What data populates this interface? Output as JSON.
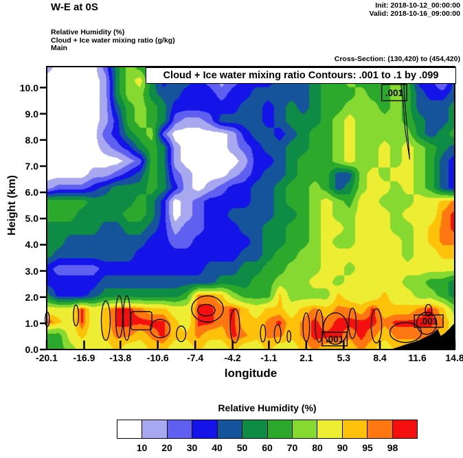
{
  "header": {
    "title": "W-E at 0S",
    "init": "Init: 2018-10-12_00:00:00",
    "valid": "Valid: 2018-10-16_09:00:00",
    "field1": "Relative Humidity   (%)",
    "field2": "Cloud + Ice water mixing ratio   (g/kg)",
    "field3": "Main",
    "cross_section": "Cross-Section: (130,420) to (454,420)"
  },
  "legend": {
    "title": "Relative Humidity  (%)",
    "labels": [
      "10",
      "20",
      "30",
      "40",
      "50",
      "60",
      "70",
      "80",
      "90",
      "95",
      "98"
    ]
  },
  "chart_data": {
    "type": "heatmap",
    "title": "Cloud + Ice water mixing ratio Contours: .001 to .1 by .099",
    "xlabel": "longitude",
    "ylabel": "Height (km)",
    "xlim": [
      -20.1,
      14.8
    ],
    "ylim": [
      0,
      10.8
    ],
    "x_ticks": [
      -20.1,
      -16.9,
      -13.8,
      -10.6,
      -7.4,
      -4.2,
      -1.1,
      2.1,
      5.3,
      8.4,
      11.6,
      14.8
    ],
    "y_ticks": [
      0.0,
      1.0,
      2.0,
      3.0,
      4.0,
      5.0,
      6.0,
      7.0,
      8.0,
      9.0,
      10.0
    ],
    "levels": [
      10,
      20,
      30,
      40,
      50,
      60,
      70,
      80,
      90,
      95,
      98
    ],
    "colors": [
      "#FFFFFF",
      "#A8A8F0",
      "#6060F0",
      "#1414E8",
      "#15549B",
      "#0E8B45",
      "#2CA92C",
      "#86D930",
      "#EDED33",
      "#FFC20A",
      "#FF7711",
      "#F51010"
    ],
    "rh_grid": {
      "nx": 36,
      "ny": 22,
      "note": "relative humidity (%) sampled on lon x height grid, rows top (10.8 km) to bottom (0 km), cols lon -20.1 to 14.8",
      "values": [
        [
          15,
          5,
          5,
          5,
          5,
          25,
          55,
          75,
          65,
          55,
          35,
          45,
          35,
          35,
          25,
          15,
          25,
          35,
          35,
          35,
          35,
          45,
          45,
          55,
          65,
          65,
          75,
          65,
          65,
          65,
          65,
          65,
          35,
          25,
          15,
          45
        ],
        [
          5,
          5,
          5,
          5,
          5,
          15,
          55,
          75,
          85,
          55,
          35,
          45,
          45,
          35,
          25,
          15,
          25,
          35,
          35,
          35,
          45,
          45,
          45,
          55,
          65,
          65,
          75,
          65,
          65,
          65,
          75,
          65,
          35,
          35,
          15,
          45
        ],
        [
          5,
          5,
          5,
          5,
          5,
          15,
          55,
          75,
          75,
          55,
          45,
          45,
          35,
          35,
          35,
          25,
          35,
          35,
          45,
          45,
          45,
          45,
          45,
          55,
          65,
          65,
          65,
          75,
          65,
          65,
          75,
          65,
          45,
          35,
          35,
          45
        ],
        [
          5,
          5,
          5,
          5,
          5,
          15,
          45,
          65,
          75,
          65,
          55,
          35,
          35,
          35,
          35,
          35,
          35,
          45,
          45,
          35,
          45,
          55,
          45,
          55,
          65,
          65,
          75,
          75,
          75,
          65,
          75,
          65,
          45,
          45,
          45,
          55
        ],
        [
          5,
          5,
          5,
          5,
          5,
          15,
          35,
          65,
          75,
          65,
          55,
          25,
          15,
          15,
          25,
          45,
          45,
          45,
          45,
          35,
          45,
          55,
          55,
          55,
          65,
          75,
          85,
          75,
          75,
          75,
          75,
          65,
          55,
          45,
          45,
          55
        ],
        [
          5,
          5,
          5,
          5,
          5,
          25,
          35,
          55,
          65,
          75,
          25,
          5,
          5,
          5,
          5,
          5,
          15,
          35,
          45,
          45,
          35,
          45,
          55,
          65,
          65,
          75,
          85,
          75,
          75,
          75,
          75,
          75,
          55,
          45,
          55,
          65
        ],
        [
          5,
          5,
          5,
          5,
          5,
          15,
          25,
          35,
          55,
          65,
          55,
          15,
          5,
          5,
          5,
          5,
          15,
          25,
          35,
          45,
          45,
          55,
          55,
          65,
          65,
          75,
          85,
          75,
          75,
          85,
          75,
          85,
          75,
          65,
          55,
          45
        ],
        [
          5,
          5,
          5,
          5,
          5,
          5,
          5,
          15,
          25,
          65,
          55,
          15,
          5,
          5,
          5,
          5,
          5,
          15,
          35,
          35,
          45,
          55,
          65,
          65,
          65,
          75,
          85,
          75,
          75,
          85,
          75,
          85,
          75,
          65,
          45,
          35
        ],
        [
          5,
          5,
          5,
          5,
          15,
          15,
          25,
          35,
          45,
          65,
          55,
          25,
          15,
          5,
          5,
          5,
          15,
          25,
          35,
          45,
          45,
          55,
          65,
          65,
          65,
          45,
          45,
          75,
          85,
          75,
          85,
          85,
          75,
          65,
          45,
          35
        ],
        [
          15,
          25,
          25,
          25,
          35,
          45,
          55,
          55,
          55,
          65,
          55,
          35,
          15,
          5,
          15,
          25,
          35,
          35,
          45,
          45,
          55,
          65,
          65,
          75,
          65,
          45,
          55,
          75,
          85,
          85,
          75,
          85,
          75,
          65,
          45,
          35
        ],
        [
          65,
          65,
          65,
          65,
          55,
          55,
          55,
          55,
          65,
          55,
          35,
          5,
          15,
          25,
          35,
          35,
          35,
          35,
          45,
          45,
          55,
          65,
          65,
          75,
          85,
          75,
          65,
          85,
          85,
          75,
          75,
          75,
          85,
          85,
          92,
          96
        ],
        [
          65,
          65,
          65,
          55,
          55,
          55,
          55,
          65,
          65,
          55,
          35,
          5,
          15,
          25,
          35,
          35,
          45,
          45,
          45,
          45,
          55,
          55,
          65,
          75,
          85,
          75,
          75,
          85,
          85,
          85,
          75,
          85,
          85,
          85,
          96,
          99
        ],
        [
          55,
          55,
          55,
          55,
          55,
          45,
          45,
          55,
          55,
          45,
          35,
          15,
          25,
          25,
          35,
          35,
          35,
          45,
          45,
          55,
          55,
          65,
          65,
          75,
          85,
          85,
          75,
          85,
          85,
          85,
          75,
          75,
          85,
          92,
          96,
          99
        ],
        [
          55,
          55,
          45,
          45,
          45,
          45,
          45,
          45,
          45,
          35,
          35,
          25,
          25,
          35,
          35,
          35,
          35,
          35,
          45,
          55,
          55,
          65,
          65,
          75,
          85,
          75,
          75,
          85,
          85,
          85,
          85,
          75,
          85,
          92,
          96,
          96
        ],
        [
          55,
          45,
          45,
          45,
          45,
          45,
          45,
          45,
          35,
          35,
          35,
          35,
          35,
          35,
          35,
          35,
          35,
          45,
          45,
          55,
          65,
          65,
          75,
          75,
          85,
          85,
          85,
          85,
          85,
          85,
          85,
          75,
          85,
          85,
          92,
          92
        ],
        [
          35,
          25,
          25,
          25,
          25,
          35,
          35,
          35,
          35,
          35,
          35,
          35,
          35,
          35,
          45,
          45,
          45,
          55,
          55,
          65,
          65,
          75,
          75,
          75,
          85,
          85,
          75,
          85,
          85,
          85,
          85,
          85,
          85,
          85,
          85,
          85
        ],
        [
          35,
          35,
          35,
          35,
          35,
          45,
          45,
          45,
          45,
          45,
          45,
          45,
          45,
          45,
          45,
          55,
          55,
          55,
          65,
          65,
          75,
          75,
          75,
          85,
          85,
          75,
          85,
          85,
          85,
          85,
          85,
          75,
          75,
          65,
          65,
          55
        ],
        [
          55,
          35,
          35,
          35,
          45,
          55,
          55,
          55,
          55,
          55,
          55,
          55,
          65,
          96,
          96,
          92,
          75,
          65,
          65,
          65,
          92,
          75,
          75,
          75,
          75,
          92,
          85,
          85,
          85,
          92,
          85,
          85,
          75,
          75,
          65,
          55
        ],
        [
          85,
          85,
          85,
          99,
          85,
          92,
          99,
          99,
          96,
          92,
          92,
          85,
          85,
          99,
          99,
          96,
          99,
          92,
          85,
          92,
          92,
          85,
          92,
          96,
          92,
          96,
          96,
          92,
          99,
          92,
          92,
          92,
          96,
          99,
          92,
          75
        ],
        [
          99,
          92,
          85,
          99,
          85,
          92,
          99,
          99,
          99,
          99,
          99,
          92,
          85,
          99,
          99,
          96,
          99,
          92,
          92,
          96,
          99,
          92,
          96,
          99,
          96,
          99,
          99,
          99,
          99,
          96,
          99,
          99,
          99,
          99,
          96,
          85
        ],
        [
          65,
          65,
          85,
          92,
          85,
          92,
          96,
          96,
          92,
          96,
          99,
          92,
          92,
          96,
          92,
          92,
          99,
          96,
          92,
          96,
          96,
          92,
          96,
          99,
          99,
          99,
          96,
          99,
          96,
          92,
          96,
          96,
          96,
          96,
          92,
          85
        ],
        [
          65,
          65,
          75,
          85,
          85,
          85,
          92,
          85,
          85,
          92,
          92,
          85,
          85,
          92,
          85,
          85,
          92,
          85,
          85,
          92,
          85,
          85,
          92,
          96,
          92,
          92,
          92,
          96,
          92,
          85,
          92,
          92,
          92,
          92,
          92,
          85
        ]
      ]
    },
    "cloud_contours": {
      "contour_values": ".001 to .1 by .099",
      "ellipses": [
        {
          "x": -20.05,
          "y": 1.15,
          "rx": 0.18,
          "ry": 0.28
        },
        {
          "x": -17.6,
          "y": 1.3,
          "rx": 0.22,
          "ry": 0.4
        },
        {
          "x": -15.05,
          "y": 1.1,
          "rx": 0.38,
          "ry": 0.75
        },
        {
          "x": -13.9,
          "y": 1.25,
          "rx": 0.3,
          "ry": 0.8
        },
        {
          "x": -13.25,
          "y": 1.2,
          "rx": 0.3,
          "ry": 0.85
        },
        {
          "x": -10.4,
          "y": 0.8,
          "rx": 0.85,
          "ry": 0.35
        },
        {
          "x": -8.6,
          "y": 0.6,
          "rx": 0.4,
          "ry": 0.3
        },
        {
          "x": -6.35,
          "y": 1.55,
          "rx": 1.35,
          "ry": 0.5
        },
        {
          "x": -6.45,
          "y": 1.5,
          "rx": 0.75,
          "ry": 0.22
        },
        {
          "x": -4.0,
          "y": 0.9,
          "rx": 0.4,
          "ry": 0.65
        },
        {
          "x": -1.6,
          "y": 0.62,
          "rx": 0.22,
          "ry": 0.33
        },
        {
          "x": -0.35,
          "y": 0.6,
          "rx": 0.28,
          "ry": 0.35
        },
        {
          "x": 0.62,
          "y": 0.5,
          "rx": 0.16,
          "ry": 0.22
        },
        {
          "x": 2.1,
          "y": 0.85,
          "rx": 0.28,
          "ry": 0.55
        },
        {
          "x": 3.2,
          "y": 0.9,
          "rx": 0.32,
          "ry": 0.62
        },
        {
          "x": 4.6,
          "y": 0.8,
          "rx": 1.05,
          "ry": 0.6
        },
        {
          "x": 6.05,
          "y": 1.0,
          "rx": 0.32,
          "ry": 0.58
        },
        {
          "x": 8.1,
          "y": 0.9,
          "rx": 0.45,
          "ry": 0.65
        },
        {
          "x": 10.6,
          "y": 0.65,
          "rx": 1.35,
          "ry": 0.38
        },
        {
          "x": 12.4,
          "y": 1.0,
          "rx": 0.85,
          "ry": 0.42
        },
        {
          "x": 12.55,
          "y": 1.5,
          "rx": 0.28,
          "ry": 0.22
        }
      ],
      "rect_contour": {
        "x1": -12.9,
        "x2": -11.1,
        "y1": 0.75,
        "y2": 1.45
      },
      "loop": [
        [
          10.0,
          10.8
        ],
        [
          10.35,
          9.6
        ],
        [
          10.55,
          8.4
        ],
        [
          10.95,
          7.25
        ],
        [
          10.7,
          8.6
        ],
        [
          10.5,
          9.6
        ],
        [
          10.4,
          10.8
        ]
      ],
      "labels": [
        {
          "text": ".001",
          "x1": 8.55,
          "x2": 10.7,
          "y1": 9.5,
          "y2": 10.12
        },
        {
          "text": ".001",
          "x1": 3.45,
          "x2": 5.6,
          "y1": 0.14,
          "y2": 0.66
        },
        {
          "text": ".001",
          "x1": 11.35,
          "x2": 13.8,
          "y1": 0.85,
          "y2": 1.32
        }
      ]
    },
    "terrain": [
      [
        9.3,
        0
      ],
      [
        10.0,
        0.1
      ],
      [
        10.8,
        0.22
      ],
      [
        11.6,
        0.32
      ],
      [
        12.2,
        0.45
      ],
      [
        12.8,
        0.58
      ],
      [
        13.35,
        0.78
      ],
      [
        13.6,
        0.52
      ],
      [
        13.95,
        0.62
      ],
      [
        14.35,
        0.8
      ],
      [
        14.8,
        1.02
      ],
      [
        14.8,
        0
      ]
    ]
  }
}
